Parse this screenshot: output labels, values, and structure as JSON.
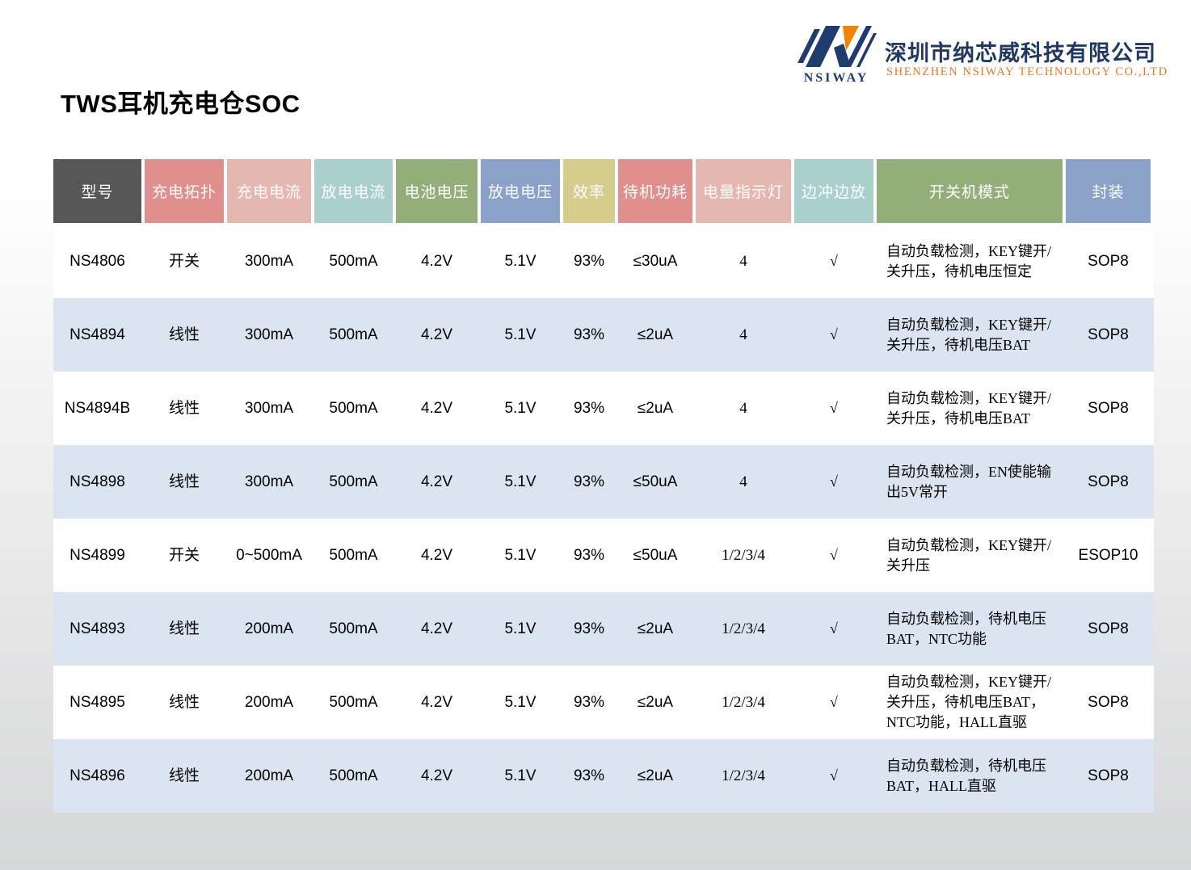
{
  "page": {
    "title": "TWS耳机充电仓SOC"
  },
  "logo": {
    "brand": "NSIWAY",
    "company_cn": "深圳市纳芯威科技有限公司",
    "company_en": "SHENZHEN  NSIWAY  TECHNOLOGY  CO.,LTD",
    "colors": {
      "navy": "#1e3c6e",
      "orange": "#f08300",
      "text_cn": "#1f3864",
      "text_en": "#e87722"
    }
  },
  "table": {
    "stripe_color": "#dbe5f2",
    "columns": [
      {
        "key": "model",
        "label": "型号",
        "color": "#575757"
      },
      {
        "key": "topology",
        "label": "充电拓扑",
        "color": "#de8f8e"
      },
      {
        "key": "charge-current",
        "label": "充电电流",
        "color": "#e4b8b1"
      },
      {
        "key": "discharge-current",
        "label": "放电电流",
        "color": "#aad0ce"
      },
      {
        "key": "battery-voltage",
        "label": "电池电压",
        "color": "#93ae78"
      },
      {
        "key": "discharge-voltage",
        "label": "放电电压",
        "color": "#8ba1c7"
      },
      {
        "key": "efficiency",
        "label": "效率",
        "color": "#d6cd8d"
      },
      {
        "key": "standby-power",
        "label": "待机功耗",
        "color": "#de8f8e"
      },
      {
        "key": "indicator",
        "label": "电量指示灯",
        "color": "#e4b8b1"
      },
      {
        "key": "check",
        "label": "边冲边放",
        "color": "#aad0ce"
      },
      {
        "key": "mode",
        "label": "开关机模式",
        "color": "#93ae78"
      },
      {
        "key": "package",
        "label": "封装",
        "color": "#8ba1c7"
      }
    ],
    "rows": [
      [
        "NS4806",
        "开关",
        "300mA",
        "500mA",
        "4.2V",
        "5.1V",
        "93%",
        "≤30uA",
        "4",
        "√",
        "自动负载检测，KEY键开/关升压，待机电压恒定",
        "SOP8"
      ],
      [
        "NS4894",
        "线性",
        "300mA",
        "500mA",
        "4.2V",
        "5.1V",
        "93%",
        "≤2uA",
        "4",
        "√",
        "自动负载检测，KEY键开/关升压，待机电压BAT",
        "SOP8"
      ],
      [
        "NS4894B",
        "线性",
        "300mA",
        "500mA",
        "4.2V",
        "5.1V",
        "93%",
        "≤2uA",
        "4",
        "√",
        "自动负载检测，KEY键开/关升压，待机电压BAT",
        "SOP8"
      ],
      [
        "NS4898",
        "线性",
        "300mA",
        "500mA",
        "4.2V",
        "5.1V",
        "93%",
        "≤50uA",
        "4",
        "√",
        "自动负载检测，EN使能输出5V常开",
        "SOP8"
      ],
      [
        "NS4899",
        "开关",
        "0~500mA",
        "500mA",
        "4.2V",
        "5.1V",
        "93%",
        "≤50uA",
        "1/2/3/4",
        "√",
        "自动负载检测，KEY键开/关升压",
        "ESOP10"
      ],
      [
        "NS4893",
        "线性",
        "200mA",
        "500mA",
        "4.2V",
        "5.1V",
        "93%",
        "≤2uA",
        "1/2/3/4",
        "√",
        "自动负载检测，待机电压BAT，NTC功能",
        "SOP8"
      ],
      [
        "NS4895",
        "线性",
        "200mA",
        "500mA",
        "4.2V",
        "5.1V",
        "93%",
        "≤2uA",
        "1/2/3/4",
        "√",
        "自动负载检测，KEY键开/关升压，待机电压BAT，NTC功能，HALL直驱",
        "SOP8"
      ],
      [
        "NS4896",
        "线性",
        "200mA",
        "500mA",
        "4.2V",
        "5.1V",
        "93%",
        "≤2uA",
        "1/2/3/4",
        "√",
        "自动负载检测，待机电压BAT，HALL直驱",
        "SOP8"
      ]
    ]
  }
}
